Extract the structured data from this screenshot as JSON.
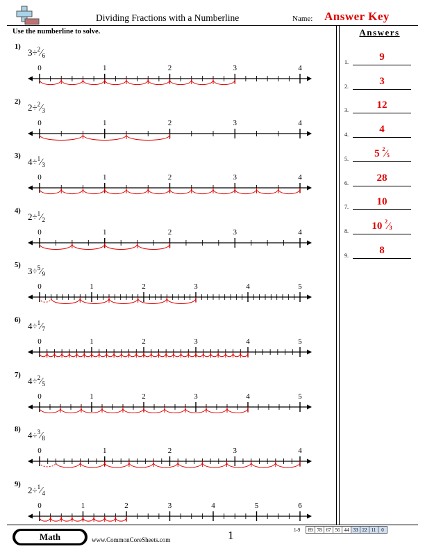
{
  "header": {
    "title": "Dividing Fractions with a Numberline",
    "name_label": "Name:",
    "answer_key": "Answer Key",
    "instructions": "Use the numberline to solve."
  },
  "answers_panel": {
    "title": "Answers",
    "items": [
      {
        "num": "1.",
        "whole": "9",
        "numerator": "",
        "denominator": ""
      },
      {
        "num": "2.",
        "whole": "3",
        "numerator": "",
        "denominator": ""
      },
      {
        "num": "3.",
        "whole": "12",
        "numerator": "",
        "denominator": ""
      },
      {
        "num": "4.",
        "whole": "4",
        "numerator": "",
        "denominator": ""
      },
      {
        "num": "5.",
        "whole": "5",
        "numerator": "2",
        "denominator": "5"
      },
      {
        "num": "6.",
        "whole": "28",
        "numerator": "",
        "denominator": ""
      },
      {
        "num": "7.",
        "whole": "10",
        "numerator": "",
        "denominator": ""
      },
      {
        "num": "8.",
        "whole": "10",
        "numerator": "2",
        "denominator": "3"
      },
      {
        "num": "9.",
        "whole": "8",
        "numerator": "",
        "denominator": ""
      }
    ]
  },
  "problems": [
    {
      "num": "1)",
      "whole": "3",
      "op": "÷",
      "numerator": "2",
      "denominator": "6",
      "max": 4,
      "div": 6,
      "step": 2,
      "dividend": 3
    },
    {
      "num": "2)",
      "whole": "2",
      "op": "÷",
      "numerator": "2",
      "denominator": "3",
      "max": 4,
      "div": 3,
      "step": 2,
      "dividend": 2
    },
    {
      "num": "3)",
      "whole": "4",
      "op": "÷",
      "numerator": "1",
      "denominator": "3",
      "max": 4,
      "div": 3,
      "step": 1,
      "dividend": 4
    },
    {
      "num": "4)",
      "whole": "2",
      "op": "÷",
      "numerator": "1",
      "denominator": "2",
      "max": 4,
      "div": 4,
      "step": 2,
      "dividend": 2
    },
    {
      "num": "5)",
      "whole": "3",
      "op": "÷",
      "numerator": "5",
      "denominator": "9",
      "max": 5,
      "div": 9,
      "step": 5,
      "dividend": 3
    },
    {
      "num": "6)",
      "whole": "4",
      "op": "÷",
      "numerator": "1",
      "denominator": "7",
      "max": 5,
      "div": 7,
      "step": 1,
      "dividend": 4
    },
    {
      "num": "7)",
      "whole": "4",
      "op": "÷",
      "numerator": "2",
      "denominator": "5",
      "max": 5,
      "div": 5,
      "step": 2,
      "dividend": 4
    },
    {
      "num": "8)",
      "whole": "4",
      "op": "÷",
      "numerator": "3",
      "denominator": "8",
      "max": 4,
      "div": 8,
      "step": 3,
      "dividend": 4
    },
    {
      "num": "9)",
      "whole": "2",
      "op": "÷",
      "numerator": "1",
      "denominator": "4",
      "max": 6,
      "div": 4,
      "step": 1,
      "dividend": 2
    }
  ],
  "footer": {
    "subject": "Math",
    "website": "www.CommonCoreSheets.com",
    "page": "1",
    "score_range": "1-9",
    "scores": [
      "89",
      "78",
      "67",
      "56",
      "44",
      "33",
      "22",
      "11",
      "0"
    ]
  },
  "colors": {
    "accent": "#e00000",
    "score_highlight": "#cfe0f5"
  },
  "icons": {
    "logo": "plus-minus-logo-icon"
  }
}
